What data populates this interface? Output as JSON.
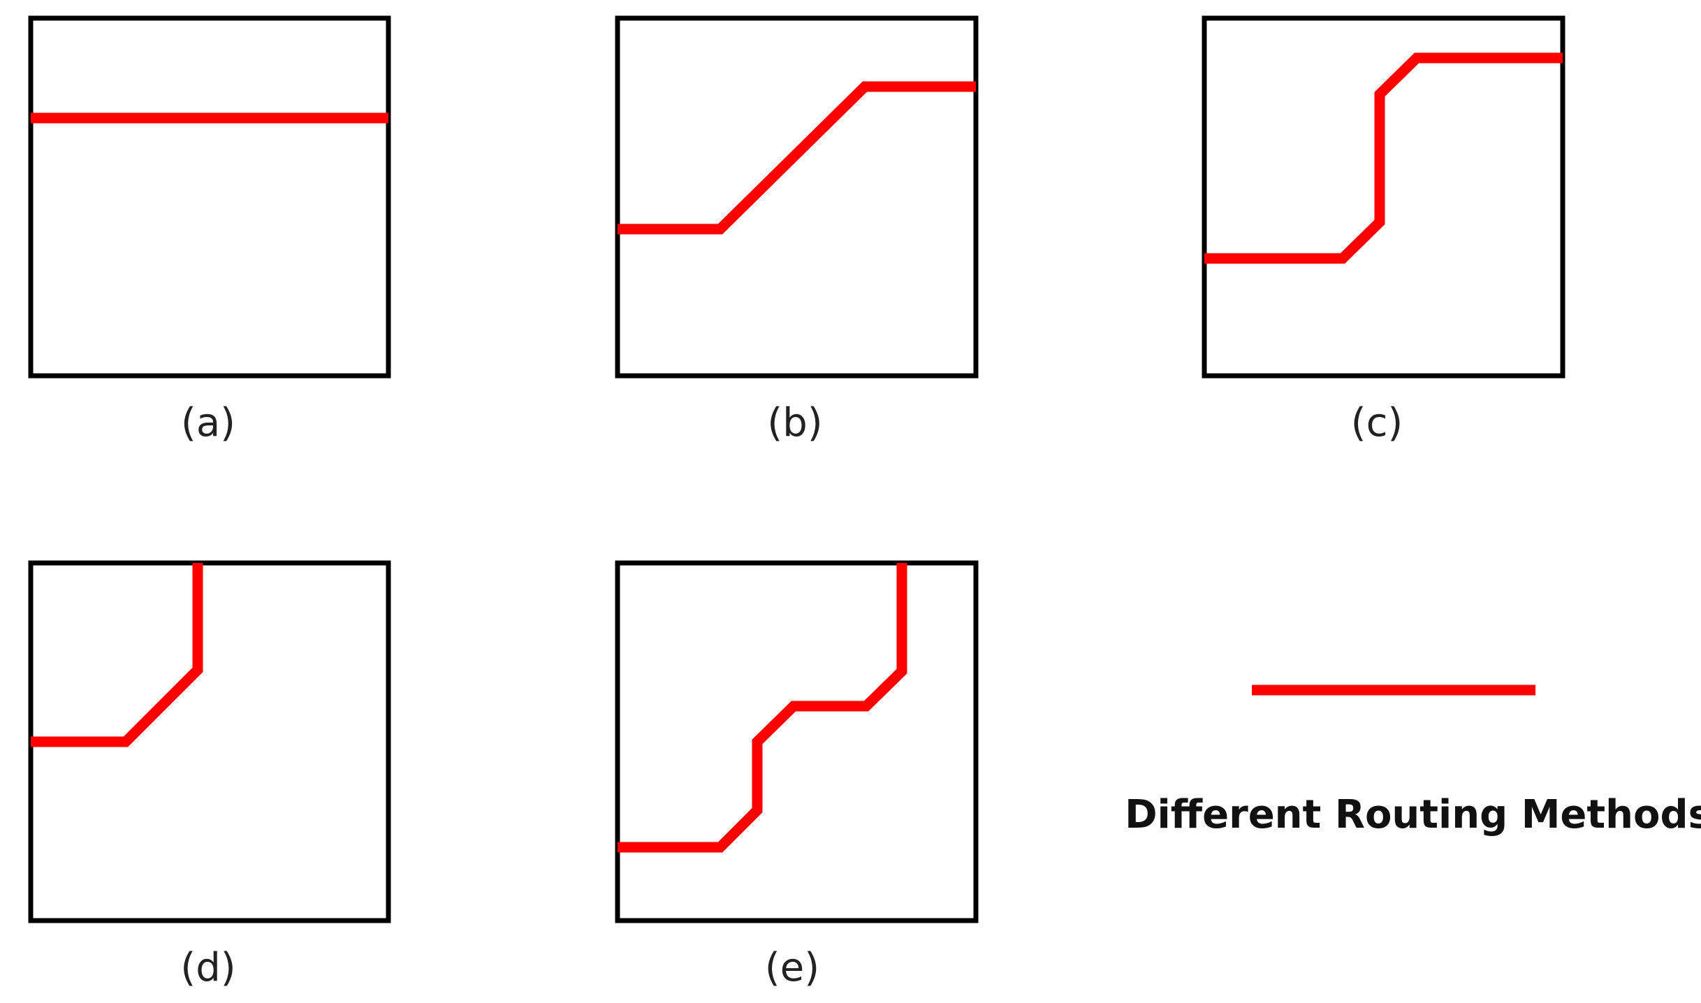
{
  "colors": {
    "route": "#ff0000",
    "frame": "#000000"
  },
  "panels": [
    {
      "id": "a",
      "caption": "(a)"
    },
    {
      "id": "b",
      "caption": "(b)"
    },
    {
      "id": "c",
      "caption": "(c)"
    },
    {
      "id": "d",
      "caption": "(d)"
    },
    {
      "id": "e",
      "caption": "(e)"
    }
  ],
  "legend": {
    "label": "Different Routing Methods"
  }
}
